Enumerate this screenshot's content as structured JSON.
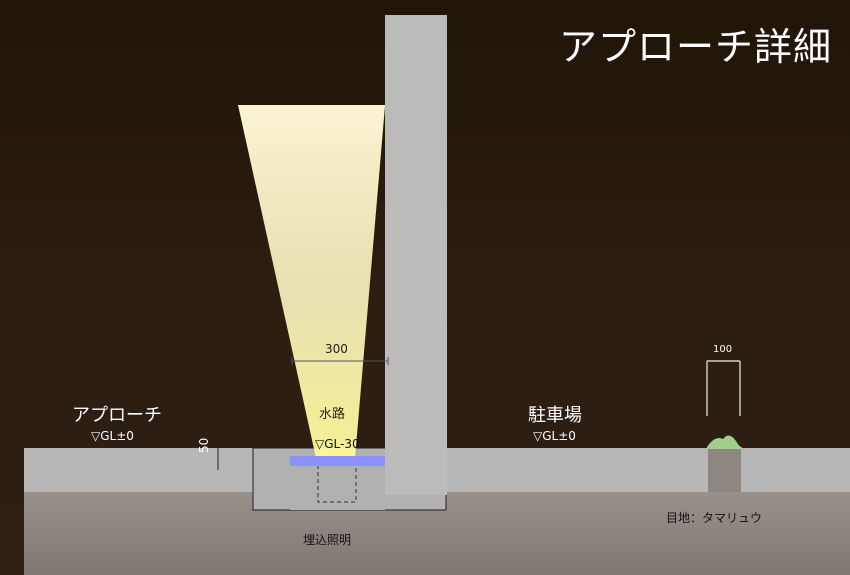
{
  "title": "アプローチ詳細",
  "labels": {
    "approach": "アプローチ",
    "approach_level": "▽GL±0",
    "parking": "駐車場",
    "parking_level": "▽GL±0",
    "waterway": "水路",
    "waterway_level": "▽GL-30",
    "width_dim": "300",
    "left_dim": "50",
    "hedge_dim": "100",
    "buried_light": "埋込照明",
    "hedge_planting": "目地：タマリュウ"
  },
  "colors": {
    "background": "#241809",
    "wall": "#b8b8b8",
    "slab": "#b5b5b5",
    "soil": "#8e8681",
    "water": "#8d91ff",
    "light": "#ffffcc",
    "planting": "#9fcf8a"
  }
}
